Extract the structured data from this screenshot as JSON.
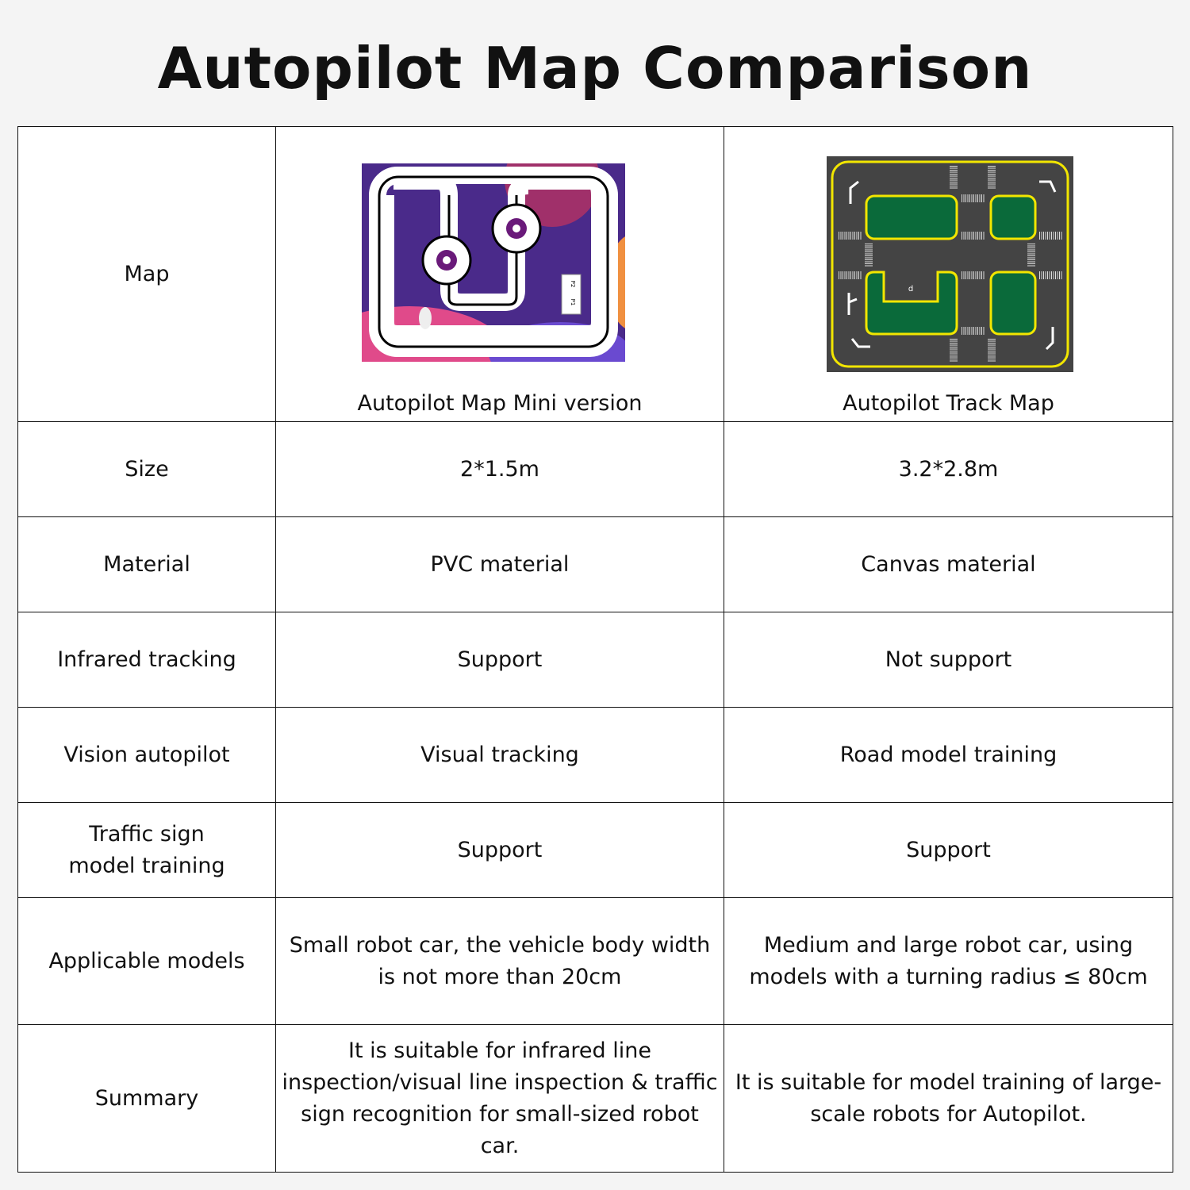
{
  "title": "Autopilot Map Comparison",
  "rows": [
    {
      "label": "Map",
      "mini": "Autopilot Map Mini version",
      "track": "Autopilot Track Map"
    },
    {
      "label": "Size",
      "mini": "2*1.5m",
      "track": "3.2*2.8m"
    },
    {
      "label": "Material",
      "mini": "PVC material",
      "track": "Canvas material"
    },
    {
      "label": "Infrared tracking",
      "mini": "Support",
      "track": "Not support"
    },
    {
      "label": "Vision autopilot",
      "mini": "Visual tracking",
      "track": "Road model training"
    },
    {
      "label": "Traffic sign model training",
      "mini": "Support",
      "track": "Support"
    },
    {
      "label": "Applicable models",
      "mini": "Small robot car, the vehicle body width is not more than 20cm",
      "track": "Medium and large robot car, using models with a turning radius ≤ 80cm"
    },
    {
      "label": "Summary",
      "mini": "It is suitable for infrared line inspection/visual line inspection & traffic sign recognition for small-sized robot car.",
      "track": "It is suitable for model training of large-scale robots for Autopilot."
    }
  ],
  "map_images": {
    "mini": {
      "labels": [
        "P2",
        "P1"
      ]
    },
    "track": {
      "labels": [
        "d"
      ]
    }
  },
  "colors": {
    "space_bg": "#4a2a8a",
    "road": "#444444",
    "lane_yellow": "#f2e600",
    "grass": "#0a6a3a"
  }
}
